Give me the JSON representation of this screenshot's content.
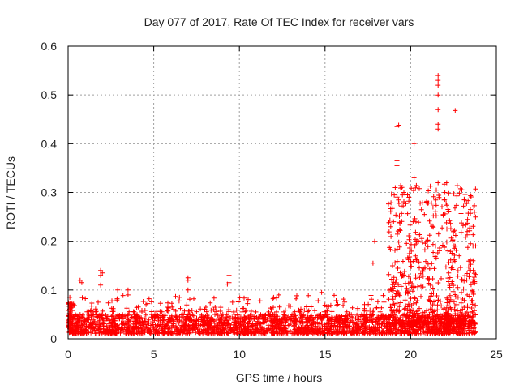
{
  "chart_data": {
    "type": "scatter",
    "title": "Day 077 of 2017, Rate Of TEC Index for receiver vars",
    "xlabel": "GPS time / hours",
    "ylabel": "ROTI / TECUs",
    "xlim": [
      0,
      25
    ],
    "ylim": [
      0,
      0.6
    ],
    "xticks": [
      0,
      5,
      10,
      15,
      20,
      25
    ],
    "xtick_labels": [
      "0",
      "5",
      "10",
      "15",
      "20",
      "25"
    ],
    "yticks": [
      0,
      0.1,
      0.2,
      0.3,
      0.4,
      0.5,
      0.6
    ],
    "ytick_labels": [
      "0",
      "0.1",
      "0.2",
      "0.3",
      "0.4",
      "0.5",
      "0.6"
    ],
    "grid": true,
    "marker": "+",
    "series_color": "#ff0000",
    "x_data_range": [
      0,
      23.8
    ],
    "baseline_range": [
      0.01,
      0.05
    ],
    "notable_points": [
      {
        "x": 0.1,
        "y": 0.085
      },
      {
        "x": 0.7,
        "y": 0.12
      },
      {
        "x": 0.8,
        "y": 0.115
      },
      {
        "x": 1.9,
        "y": 0.14
      },
      {
        "x": 2.0,
        "y": 0.135
      },
      {
        "x": 1.9,
        "y": 0.13
      },
      {
        "x": 1.9,
        "y": 0.11
      },
      {
        "x": 3.5,
        "y": 0.1
      },
      {
        "x": 3.5,
        "y": 0.09
      },
      {
        "x": 2.9,
        "y": 0.1
      },
      {
        "x": 6.5,
        "y": 0.085
      },
      {
        "x": 7.0,
        "y": 0.125
      },
      {
        "x": 7.0,
        "y": 0.12
      },
      {
        "x": 7.0,
        "y": 0.1
      },
      {
        "x": 9.4,
        "y": 0.13
      },
      {
        "x": 9.4,
        "y": 0.115
      },
      {
        "x": 9.3,
        "y": 0.112
      },
      {
        "x": 9.6,
        "y": 0.075
      },
      {
        "x": 12.0,
        "y": 0.085
      },
      {
        "x": 12.3,
        "y": 0.09
      },
      {
        "x": 14.8,
        "y": 0.095
      },
      {
        "x": 17.9,
        "y": 0.2
      },
      {
        "x": 17.8,
        "y": 0.155
      },
      {
        "x": 19.0,
        "y": 0.24
      },
      {
        "x": 19.1,
        "y": 0.31
      },
      {
        "x": 19.2,
        "y": 0.365
      },
      {
        "x": 19.2,
        "y": 0.355
      },
      {
        "x": 19.2,
        "y": 0.435
      },
      {
        "x": 19.3,
        "y": 0.438
      },
      {
        "x": 19.6,
        "y": 0.3
      },
      {
        "x": 19.9,
        "y": 0.29
      },
      {
        "x": 20.2,
        "y": 0.4
      },
      {
        "x": 20.2,
        "y": 0.33
      },
      {
        "x": 20.8,
        "y": 0.255
      },
      {
        "x": 21.3,
        "y": 0.27
      },
      {
        "x": 21.6,
        "y": 0.54
      },
      {
        "x": 21.6,
        "y": 0.53
      },
      {
        "x": 21.6,
        "y": 0.52
      },
      {
        "x": 21.6,
        "y": 0.5
      },
      {
        "x": 21.6,
        "y": 0.47
      },
      {
        "x": 21.6,
        "y": 0.44
      },
      {
        "x": 21.6,
        "y": 0.43
      },
      {
        "x": 21.6,
        "y": 0.32
      },
      {
        "x": 22.1,
        "y": 0.32
      },
      {
        "x": 22.0,
        "y": 0.3
      },
      {
        "x": 22.6,
        "y": 0.468
      },
      {
        "x": 22.7,
        "y": 0.293
      },
      {
        "x": 22.5,
        "y": 0.22
      },
      {
        "x": 22.6,
        "y": 0.19
      },
      {
        "x": 23.0,
        "y": 0.12
      },
      {
        "x": 23.3,
        "y": 0.09
      }
    ],
    "clusters": [
      {
        "x_range": [
          18.7,
          23.8
        ],
        "y_range": [
          0.03,
          0.32
        ],
        "count": 650
      },
      {
        "x_range": [
          0,
          18.6
        ],
        "y_range": [
          0.055,
          0.09
        ],
        "count": 160
      }
    ]
  }
}
